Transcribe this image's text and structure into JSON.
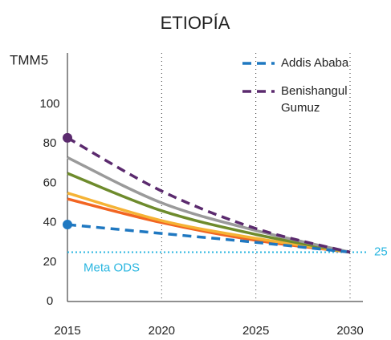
{
  "chart_data": {
    "type": "line",
    "title": "ETIOPÍA",
    "y_label": "TMM5",
    "x": [
      2015,
      2020,
      2025,
      2030
    ],
    "xlim": [
      2015,
      2030
    ],
    "xticks": [
      2015,
      2020,
      2025,
      2030
    ],
    "ylim": [
      0,
      100
    ],
    "yticks": [
      0,
      20,
      40,
      60,
      80,
      100
    ],
    "x_grid": true,
    "series": [
      {
        "color": "#f26522",
        "values": [
          52,
          40,
          31,
          25
        ]
      },
      {
        "color": "#f5b335",
        "values": [
          55,
          41,
          32,
          25
        ]
      },
      {
        "color": "#6e8b2c",
        "values": [
          65,
          46,
          34,
          25
        ]
      },
      {
        "color": "#9a9a9a",
        "values": [
          73,
          50,
          36,
          25
        ]
      },
      {
        "name": "Addis Ababa",
        "color": "#1f78c1",
        "dashed": true,
        "start_marker": true,
        "values": [
          39,
          34.5,
          30,
          25
        ]
      },
      {
        "name": "Benishangul Gumuz",
        "color": "#5b2a6e",
        "dashed": true,
        "start_marker": true,
        "values": [
          83,
          56,
          37,
          25
        ]
      }
    ],
    "target": {
      "value": 25,
      "label": "Meta ODS",
      "color": "#29b6e0"
    }
  }
}
